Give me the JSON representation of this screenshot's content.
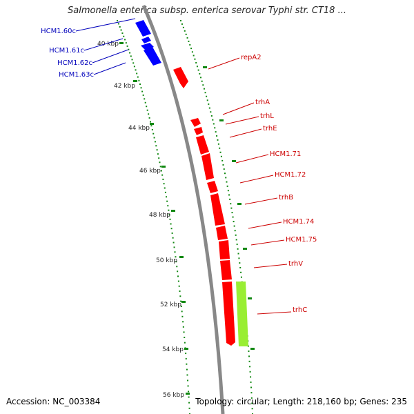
{
  "title": "Salmonella enterica subsp. enterica serovar Typhi str. CT18 ...",
  "accession": "Accession: NC_003384",
  "topology": "Topology: circular; Length: 218,160 bp; Genes: 235",
  "colors": {
    "blue_gene": "#0000ff",
    "red_gene": "#ff0000",
    "green_gene": "#99ee33",
    "left_label": "#0000bb",
    "right_label": "#cc0000",
    "tick": "#118811",
    "backbone": "#888888"
  },
  "ticks": [
    {
      "label": "40 kbp"
    },
    {
      "label": "42 kbp"
    },
    {
      "label": "44 kbp"
    },
    {
      "label": "46 kbp"
    },
    {
      "label": "48 kbp"
    },
    {
      "label": "50 kbp"
    },
    {
      "label": "52 kbp"
    },
    {
      "label": "54 kbp"
    },
    {
      "label": "56 kbp"
    }
  ],
  "left_labels": [
    {
      "label": "HCM1.60c"
    },
    {
      "label": "HCM1.61c"
    },
    {
      "label": "HCM1.62c"
    },
    {
      "label": "HCM1.63c"
    }
  ],
  "right_labels": [
    {
      "label": "repA2"
    },
    {
      "label": "trhA"
    },
    {
      "label": "trhL"
    },
    {
      "label": "trhE"
    },
    {
      "label": "HCM1.71"
    },
    {
      "label": "HCM1.72"
    },
    {
      "label": "trhB"
    },
    {
      "label": "HCM1.74"
    },
    {
      "label": "HCM1.75"
    },
    {
      "label": "trhV"
    },
    {
      "label": "trhC"
    }
  ]
}
